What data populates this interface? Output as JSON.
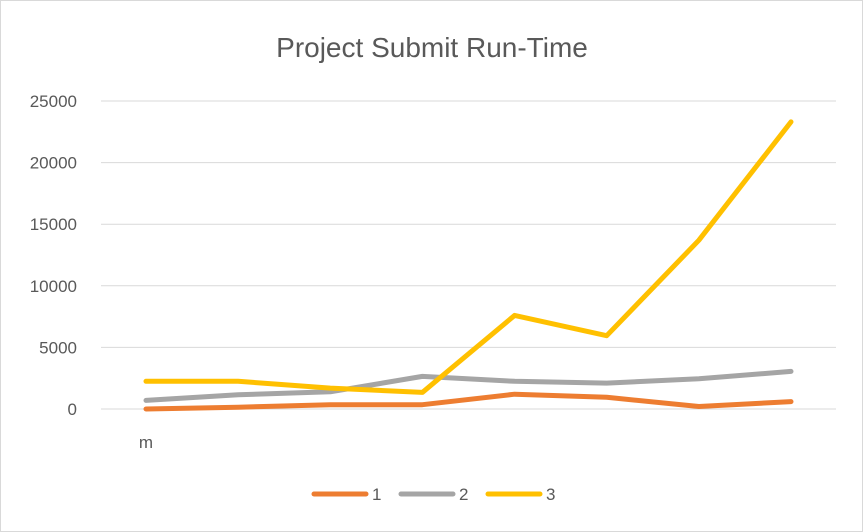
{
  "chart_data": {
    "type": "line",
    "title": "Project Submit Run-Time",
    "xlabel": "",
    "ylabel": "",
    "ylim": [
      0,
      25000
    ],
    "yticks": [
      "0",
      "5000",
      "10000",
      "15000",
      "20000",
      "25000"
    ],
    "x_tick_label": "m",
    "grid": true,
    "legend_position": "bottom",
    "series": [
      {
        "name": "1",
        "color": "#ED7D31",
        "values": [
          0,
          150,
          350,
          350,
          1200,
          950,
          200,
          600
        ]
      },
      {
        "name": "2",
        "color": "#A5A5A5",
        "values": [
          700,
          1150,
          1400,
          2650,
          2250,
          2100,
          2450,
          3050
        ]
      },
      {
        "name": "3",
        "color": "#FFC000",
        "values": [
          2250,
          2250,
          1700,
          1350,
          7600,
          5950,
          13700,
          23300
        ]
      }
    ]
  }
}
